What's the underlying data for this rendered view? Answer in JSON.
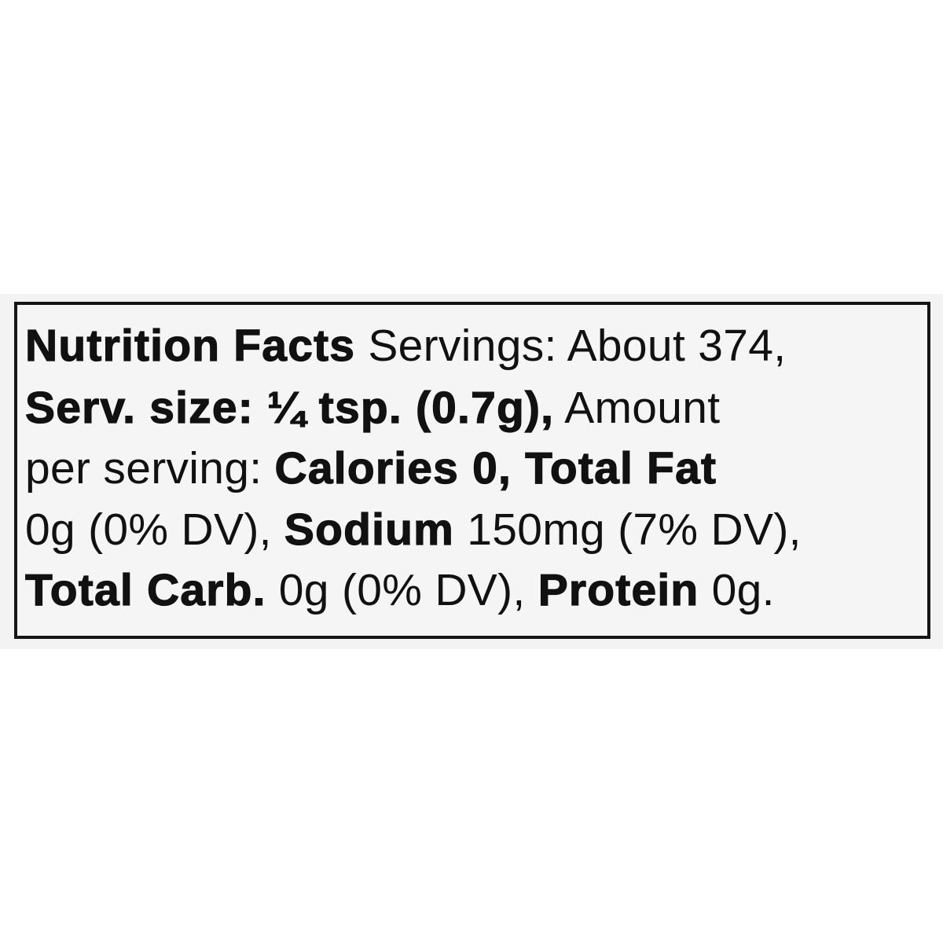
{
  "label": {
    "lines": [
      [
        {
          "text": "Nutrition Facts",
          "bold": true
        },
        {
          "text": " Servings: About 374,",
          "bold": false
        }
      ],
      [
        {
          "text": "Serv. size: ¼ tsp. (0.7g),",
          "bold": true
        },
        {
          "text": " Amount",
          "bold": false
        }
      ],
      [
        {
          "text": "per serving: ",
          "bold": false
        },
        {
          "text": "Calories 0, Total Fat",
          "bold": true
        }
      ],
      [
        {
          "text": "0g (0% DV), ",
          "bold": false
        },
        {
          "text": "Sodium",
          "bold": true
        },
        {
          "text": " 150mg (7% DV),",
          "bold": false
        }
      ],
      [
        {
          "text": "Total Carb.",
          "bold": true
        },
        {
          "text": " 0g (0% DV), ",
          "bold": false
        },
        {
          "text": "Protein",
          "bold": true
        },
        {
          "text": " 0g.",
          "bold": false
        }
      ]
    ]
  },
  "colors": {
    "text": "#111111",
    "border": "#161616",
    "background": "#f5f5f5"
  }
}
